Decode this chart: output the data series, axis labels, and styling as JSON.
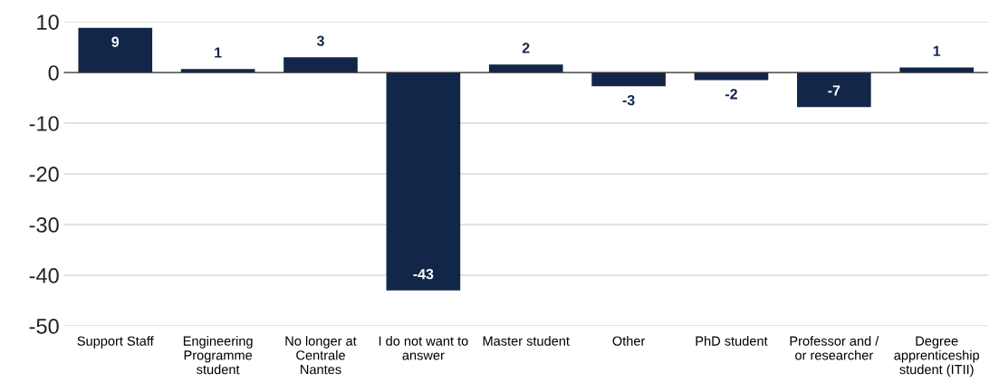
{
  "chart_data": {
    "type": "bar",
    "categories": [
      "Support Staff",
      "Engineering\nProgramme\nstudent",
      "No longer at\nCentrale\nNantes",
      "I do not want to\nanswer",
      "Master student",
      "Other",
      "PhD student",
      "Professor and /\nor researcher",
      "Degree\napprenticeship\nstudent (ITII)"
    ],
    "values": [
      8.8,
      0.7,
      3,
      -43,
      1.6,
      -2.7,
      -1.5,
      -6.8,
      1.0
    ],
    "value_labels": [
      "9",
      "1",
      "3",
      "-43",
      "2",
      "-3",
      "-2",
      "-7",
      "1"
    ],
    "color": "#12264a",
    "ylim": [
      -50,
      10
    ],
    "yticks": [
      -50,
      -40,
      -30,
      -20,
      -10,
      0,
      10
    ],
    "grid": "y"
  }
}
